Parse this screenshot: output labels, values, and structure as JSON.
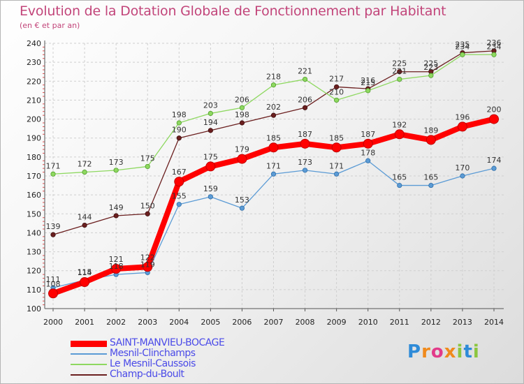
{
  "header": {
    "title": "Evolution de la Dotation Globale de Fonctionnement par Habitant",
    "subtitle": "(en € et par an)"
  },
  "logo": {
    "text": "Proxiti"
  },
  "colors": {
    "saint_manvieu": "#ff0000",
    "mesnil_clinchamps": "#5b9bd5",
    "le_mesnil_caussois": "#8ed860",
    "champ_du_boult": "#6b1f1f",
    "title": "#c2457a",
    "legend_text": "#4a4ae8"
  },
  "chart_data": {
    "type": "line",
    "title": "Evolution de la Dotation Globale de Fonctionnement par Habitant",
    "subtitle": "(en € et par an)",
    "xlabel": "",
    "ylabel": "",
    "x": [
      "2000",
      "2001",
      "2002",
      "2003",
      "2004",
      "2005",
      "2006",
      "2007",
      "2008",
      "2009",
      "2010",
      "2011",
      "2012",
      "2013",
      "2014"
    ],
    "ylim": [
      100,
      240
    ],
    "yticks": [
      100,
      110,
      120,
      130,
      140,
      150,
      160,
      170,
      180,
      190,
      200,
      210,
      220,
      230,
      240
    ],
    "grid": true,
    "legend_position": "bottom-left",
    "series": [
      {
        "name": "SAINT-MANVIEU-BOCAGE",
        "color": "#ff0000",
        "values": [
          108,
          114,
          121,
          122,
          167,
          175,
          179,
          185,
          187,
          185,
          187,
          192,
          189,
          196,
          200
        ]
      },
      {
        "name": "Mesnil-Clinchamps",
        "color": "#5b9bd5",
        "values": [
          111,
          115,
          118,
          119,
          155,
          159,
          153,
          171,
          173,
          171,
          178,
          165,
          165,
          170,
          174
        ]
      },
      {
        "name": "Le Mesnil-Caussois",
        "color": "#8ed860",
        "values": [
          171,
          172,
          173,
          175,
          198,
          203,
          206,
          218,
          221,
          210,
          215,
          221,
          223,
          234,
          234
        ]
      },
      {
        "name": "Champ-du-Boult",
        "color": "#6b1f1f",
        "values": [
          139,
          144,
          149,
          150,
          190,
          194,
          198,
          202,
          206,
          217,
          216,
          225,
          225,
          235,
          236
        ]
      }
    ]
  }
}
